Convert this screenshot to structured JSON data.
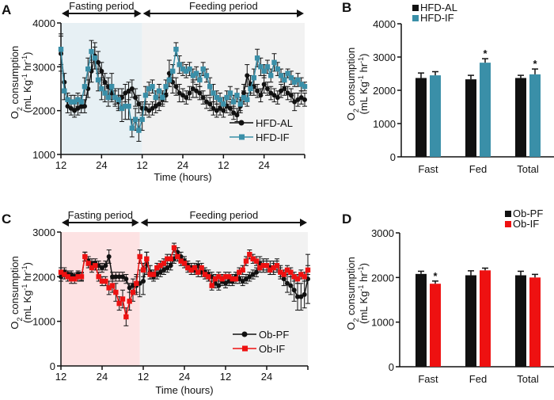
{
  "colors": {
    "hfd_al": "#111111",
    "hfd_if": "#3a8fa8",
    "ob_pf": "#111111",
    "ob_if": "#ee1111",
    "fasting_bg_A": "#e7f0f4",
    "fasting_bg_C": "#fde2e3",
    "feeding_bg": "#f2f2f2"
  },
  "chart_data": [
    {
      "panel": "A",
      "type": "line",
      "xlabel": "Time (hours)",
      "ylabel_line1": "O2 consumption",
      "ylabel_line2": "(mL Kg-1 hr-1)",
      "xlim": [
        12,
        84
      ],
      "ylim": [
        1000,
        4000
      ],
      "yticks": [
        1000,
        2000,
        3000,
        4000
      ],
      "xtick_values": [
        12,
        24,
        36,
        48,
        60,
        72,
        84
      ],
      "xtick_labels": [
        "12",
        "24",
        "12",
        "24",
        "12",
        "24",
        ""
      ],
      "periods": [
        {
          "label": "Fasting period",
          "start": 12,
          "end": 36
        },
        {
          "label": "Feeding period",
          "start": 36,
          "end": 84
        }
      ],
      "legend_position": "bottom-right",
      "x_start": 12,
      "x_step": 1,
      "series": [
        {
          "name": "HFD-AL",
          "marker": "circle",
          "color_key": "hfd_al",
          "values": [
            3300,
            2650,
            2100,
            2050,
            2000,
            2050,
            2100,
            2100,
            2500,
            2900,
            3250,
            3100,
            2900,
            2650,
            2550,
            2400,
            2300,
            2200,
            2300,
            2400,
            2450,
            2500,
            2300,
            2150,
            2050,
            2050,
            2000,
            2050,
            2100,
            2150,
            2250,
            2350,
            2850,
            2650,
            2550,
            2400,
            2350,
            2300,
            2400,
            2500,
            2450,
            2400,
            2300,
            2200,
            2150,
            2050,
            2000,
            2050,
            2000,
            2100,
            2050,
            1950,
            1900,
            2100,
            2400,
            2800,
            2600,
            2550,
            2450,
            2350,
            2600,
            2500,
            2400,
            2350,
            2300,
            2450,
            2500,
            2400,
            2350,
            2200,
            2250,
            2300,
            2250
          ],
          "errors": [
            400,
            200,
            150,
            150,
            150,
            150,
            150,
            150,
            200,
            250,
            300,
            250,
            200,
            200,
            200,
            200,
            150,
            150,
            200,
            200,
            200,
            200,
            200,
            200,
            150,
            150,
            150,
            150,
            150,
            150,
            150,
            150,
            300,
            250,
            200,
            200,
            150,
            150,
            150,
            200,
            150,
            150,
            150,
            150,
            150,
            150,
            150,
            150,
            150,
            150,
            150,
            150,
            150,
            150,
            200,
            250,
            200,
            200,
            150,
            150,
            200,
            150,
            150,
            150,
            150,
            150,
            150,
            150,
            150,
            200,
            150,
            150,
            150
          ]
        },
        {
          "name": "HFD-IF",
          "marker": "square",
          "color_key": "hfd_if",
          "values": [
            3400,
            2450,
            2250,
            2200,
            2200,
            2250,
            2200,
            2550,
            2950,
            3350,
            3200,
            2700,
            2500,
            2400,
            2300,
            2550,
            2300,
            2250,
            2050,
            2100,
            2100,
            1600,
            1800,
            1550,
            1800,
            2350,
            2500,
            2550,
            2300,
            2450,
            2300,
            2550,
            2700,
            2900,
            3400,
            3050,
            2950,
            2900,
            2950,
            2800,
            2850,
            2700,
            2950,
            2800,
            2550,
            2400,
            2300,
            2250,
            2150,
            2300,
            2400,
            2200,
            2350,
            2150,
            2300,
            2250,
            2500,
            2750,
            3200,
            3000,
            2900,
            3000,
            2800,
            3100,
            2950,
            2800,
            2700,
            2850,
            2750,
            2650,
            2700,
            2600,
            2550
          ],
          "errors": [
            350,
            200,
            150,
            150,
            150,
            150,
            150,
            200,
            250,
            250,
            250,
            250,
            250,
            200,
            200,
            300,
            200,
            250,
            300,
            300,
            300,
            200,
            250,
            250,
            250,
            200,
            150,
            150,
            150,
            150,
            150,
            150,
            150,
            150,
            150,
            200,
            150,
            150,
            150,
            150,
            150,
            150,
            150,
            150,
            200,
            200,
            150,
            150,
            150,
            150,
            150,
            150,
            150,
            150,
            150,
            150,
            150,
            200,
            200,
            200,
            150,
            150,
            150,
            200,
            150,
            150,
            150,
            100,
            150,
            100,
            150,
            150,
            100
          ]
        }
      ]
    },
    {
      "panel": "B",
      "type": "bar",
      "ylabel_line1": "O2 consumption",
      "ylabel_line2": "(mL Kg-1 hr-1)",
      "categories": [
        "Fast",
        "Fed",
        "Total"
      ],
      "ylim": [
        0,
        4000
      ],
      "yticks": [
        0,
        1000,
        2000,
        3000,
        4000
      ],
      "legend_position": "top-left",
      "series": [
        {
          "name": "HFD-AL",
          "color_key": "hfd_al",
          "values": [
            2370,
            2330,
            2370
          ],
          "errors": [
            150,
            120,
            80
          ],
          "significant": [
            false,
            false,
            false
          ]
        },
        {
          "name": "HFD-IF",
          "color_key": "hfd_if",
          "values": [
            2450,
            2830,
            2480
          ],
          "errors": [
            110,
            120,
            160
          ],
          "significant": [
            false,
            true,
            true
          ]
        }
      ],
      "significance_marker": "*"
    },
    {
      "panel": "C",
      "type": "line",
      "xlabel": "Time (hours)",
      "ylabel_line1": "O2 consumption",
      "ylabel_line2": "(mL Kg-1 hr-1)",
      "xlim": [
        12,
        84
      ],
      "ylim": [
        0,
        3000
      ],
      "yticks": [
        0,
        1000,
        2000,
        3000
      ],
      "xtick_values": [
        12,
        24,
        36,
        48,
        60,
        72,
        84
      ],
      "xtick_labels": [
        "12",
        "24",
        "12",
        "24",
        "12",
        "24",
        ""
      ],
      "periods": [
        {
          "label": "Fasting period",
          "start": 12,
          "end": 35
        },
        {
          "label": "Feeding period",
          "start": 35,
          "end": 84
        }
      ],
      "legend_position": "bottom-right",
      "x_start": 12,
      "x_step": 1,
      "series": [
        {
          "name": "Ob-PF",
          "marker": "circle",
          "color_key": "ob_pf",
          "values": [
            2000,
            2100,
            2050,
            2050,
            2000,
            2050,
            2000,
            2450,
            2350,
            2300,
            2300,
            2250,
            2200,
            2250,
            2450,
            2000,
            2000,
            2000,
            2000,
            1950,
            1750,
            1800,
            1800,
            1850,
            1900,
            2300,
            2100,
            2000,
            2050,
            2100,
            2150,
            2200,
            2250,
            2400,
            2550,
            2450,
            2350,
            2250,
            2200,
            2150,
            2250,
            2100,
            2100,
            2050,
            2000,
            1850,
            1800,
            1900,
            1850,
            1900,
            1900,
            2000,
            1950,
            1900,
            1950,
            2000,
            2050,
            2100,
            2300,
            2250,
            2250,
            2200,
            2200,
            2250,
            2100,
            1950,
            1850,
            1800,
            1700,
            1550,
            1550,
            1600,
            1950
          ],
          "errors": [
            100,
            100,
            80,
            80,
            80,
            80,
            80,
            100,
            100,
            100,
            100,
            100,
            100,
            100,
            150,
            100,
            100,
            100,
            100,
            100,
            100,
            150,
            200,
            300,
            300,
            250,
            150,
            100,
            100,
            100,
            100,
            100,
            100,
            100,
            100,
            100,
            100,
            100,
            100,
            100,
            100,
            100,
            100,
            100,
            100,
            100,
            100,
            100,
            100,
            100,
            100,
            100,
            100,
            100,
            100,
            100,
            100,
            100,
            150,
            150,
            150,
            150,
            150,
            150,
            150,
            150,
            200,
            200,
            250,
            300,
            300,
            300,
            550
          ]
        },
        {
          "name": "Ob-IF",
          "marker": "square",
          "color_key": "ob_if",
          "values": [
            2100,
            2050,
            2000,
            1950,
            1950,
            2000,
            2000,
            2450,
            2300,
            2200,
            2250,
            2000,
            1900,
            1900,
            1750,
            1800,
            1650,
            1400,
            1500,
            1100,
            1450,
            1650,
            1850,
            2450,
            2150,
            2400,
            2050,
            2050,
            2200,
            2250,
            2300,
            2400,
            2400,
            2650,
            2450,
            2350,
            2300,
            2200,
            2150,
            2200,
            2100,
            2200,
            2050,
            2000,
            1800,
            1950,
            2000,
            1950,
            2000,
            2000,
            1950,
            1950,
            2100,
            2150,
            2350,
            2500,
            2400,
            2350,
            2200,
            2250,
            2250,
            2150,
            2200,
            2250,
            2100,
            2050,
            2150,
            2100,
            2000,
            1950,
            2050,
            2000,
            2150
          ],
          "errors": [
            100,
            100,
            100,
            100,
            100,
            100,
            100,
            100,
            100,
            100,
            100,
            100,
            100,
            100,
            150,
            150,
            200,
            150,
            200,
            200,
            200,
            200,
            200,
            150,
            150,
            150,
            100,
            100,
            100,
            100,
            100,
            100,
            100,
            100,
            100,
            100,
            100,
            100,
            100,
            100,
            100,
            100,
            100,
            100,
            100,
            100,
            100,
            100,
            100,
            100,
            100,
            100,
            100,
            100,
            100,
            100,
            100,
            100,
            100,
            100,
            100,
            100,
            100,
            100,
            100,
            100,
            100,
            100,
            100,
            100,
            100,
            100,
            100
          ]
        }
      ]
    },
    {
      "panel": "D",
      "type": "bar",
      "ylabel_line1": "O2 consumption",
      "ylabel_line2": "(mL Kg-1 hr-1)",
      "categories": [
        "Fast",
        "Fed",
        "Total"
      ],
      "ylim": [
        0,
        3000
      ],
      "yticks": [
        0,
        1000,
        2000,
        3000
      ],
      "legend_position": "top-right",
      "series": [
        {
          "name": "Ob-PF",
          "color_key": "ob_pf",
          "values": [
            2080,
            2050,
            2050
          ],
          "errors": [
            60,
            100,
            90
          ],
          "significant": [
            false,
            false,
            false
          ]
        },
        {
          "name": "Ob-IF",
          "color_key": "ob_if",
          "values": [
            1860,
            2160,
            2000
          ],
          "errors": [
            60,
            50,
            70
          ],
          "significant": [
            true,
            false,
            false
          ]
        }
      ],
      "significance_marker": "*"
    }
  ]
}
